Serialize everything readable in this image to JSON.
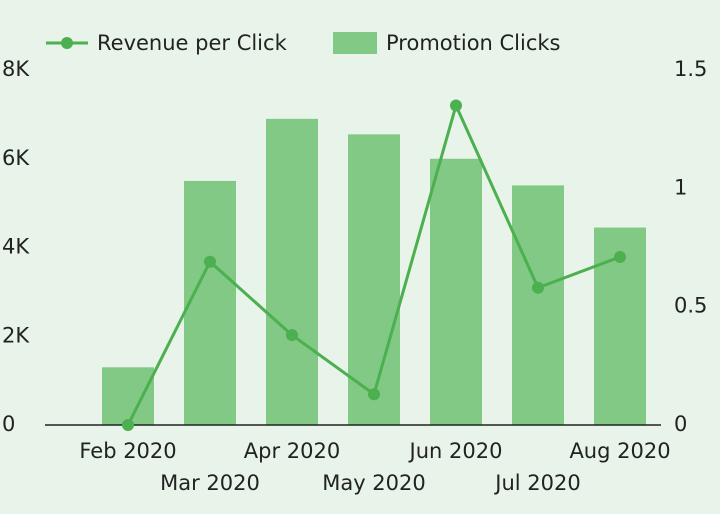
{
  "chart_data": {
    "type": "bar_line",
    "categories": [
      "Feb 2020",
      "Mar 2020",
      "Apr 2020",
      "May 2020",
      "Jun 2020",
      "Jul 2020",
      "Aug 2020"
    ],
    "series": [
      {
        "name": "Promotion Clicks",
        "type": "bar",
        "color": "#82c985",
        "values": [
          1300,
          5500,
          6900,
          6550,
          6000,
          5400,
          4450
        ]
      },
      {
        "name": "Revenue per Click",
        "type": "line",
        "axis": "y2",
        "color": "#4caf50",
        "values": [
          0,
          0.69,
          0.38,
          0.13,
          1.35,
          0.58,
          0.71
        ]
      }
    ],
    "ylim": [
      0,
      8000
    ],
    "yticks": [
      0,
      {
        "value": 2000,
        "label": "2K"
      },
      {
        "value": 4000,
        "label": "4K"
      },
      {
        "value": 6000,
        "label": "6K"
      },
      {
        "value": 8000,
        "label": "8K"
      }
    ],
    "y2lim": [
      0,
      1.5
    ],
    "y2ticks": [
      0,
      0.5,
      1,
      1.5
    ]
  }
}
